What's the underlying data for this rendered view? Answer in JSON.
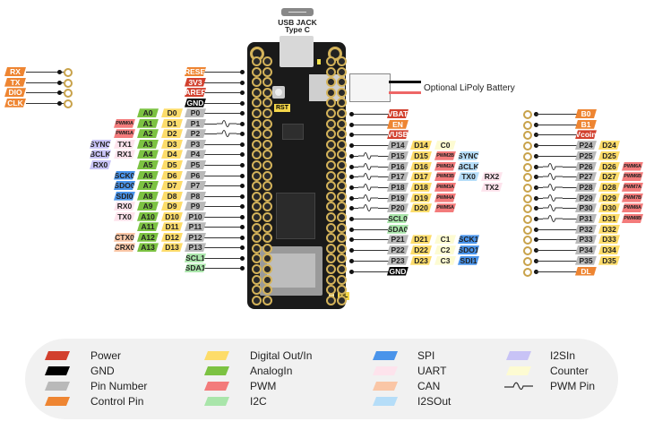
{
  "colors": {
    "power": "#d2402e",
    "gnd": "#000000",
    "pin": "#b9b9b9",
    "control": "#ee8532",
    "digital": "#fddc6a",
    "analog": "#7cc242",
    "pwm": "#f37b7b",
    "i2c": "#a9e5aa",
    "spi": "#4a94ea",
    "uart": "#fde3ec",
    "can": "#fac6a6",
    "i2sout": "#b5ddf8",
    "i2sin": "#c8c3f6",
    "counter": "#fdfbd2"
  },
  "usb": {
    "label_line1": "USB JACK",
    "label_line2": "Type C"
  },
  "battery": {
    "label": "Optional LiPoly Battery"
  },
  "board": {
    "rst_label": "RST",
    "dl_label": "DL"
  },
  "debug_pins": [
    {
      "t": "RX",
      "k": "control"
    },
    {
      "t": "TX",
      "k": "control"
    },
    {
      "t": "DIO",
      "k": "control"
    },
    {
      "t": "CLK",
      "k": "control"
    }
  ],
  "left_rows": [
    {
      "cells": [
        {
          "t": "RESET",
          "k": "control"
        }
      ]
    },
    {
      "cells": [
        {
          "t": "3V3",
          "k": "power"
        }
      ]
    },
    {
      "cells": [
        {
          "t": "AREF",
          "k": "power"
        }
      ]
    },
    {
      "cells": [
        {
          "t": "GND",
          "k": "gnd"
        }
      ]
    },
    {
      "cells": [
        {
          "t": "P0",
          "k": "pin"
        },
        {
          "t": "D0",
          "k": "digital"
        },
        {
          "t": "A0",
          "k": "analog"
        }
      ]
    },
    {
      "pwm": true,
      "cells": [
        {
          "t": "P1",
          "k": "pin"
        },
        {
          "t": "D1",
          "k": "digital"
        },
        {
          "t": "A1",
          "k": "analog"
        },
        {
          "t": "PWM0A",
          "k": "pwm"
        }
      ]
    },
    {
      "pwm": true,
      "cells": [
        {
          "t": "P2",
          "k": "pin"
        },
        {
          "t": "D2",
          "k": "digital"
        },
        {
          "t": "A2",
          "k": "analog"
        },
        {
          "t": "PWM1A",
          "k": "pwm"
        }
      ]
    },
    {
      "cells": [
        {
          "t": "P3",
          "k": "pin"
        },
        {
          "t": "D3",
          "k": "digital"
        },
        {
          "t": "A3",
          "k": "analog"
        },
        {
          "t": "TX1",
          "k": "uart"
        },
        {
          "t": "SYNC0",
          "k": "i2sin"
        }
      ]
    },
    {
      "cells": [
        {
          "t": "P4",
          "k": "pin"
        },
        {
          "t": "D4",
          "k": "digital"
        },
        {
          "t": "A4",
          "k": "analog"
        },
        {
          "t": "RX1",
          "k": "uart"
        },
        {
          "t": "BCLK0",
          "k": "i2sin"
        }
      ]
    },
    {
      "cells": [
        {
          "t": "P5",
          "k": "pin"
        },
        {
          "t": "D5",
          "k": "digital"
        },
        {
          "t": "A5",
          "k": "analog"
        },
        null,
        {
          "t": "RX0",
          "k": "i2sin"
        }
      ]
    },
    {
      "cells": [
        {
          "t": "P6",
          "k": "pin"
        },
        {
          "t": "D6",
          "k": "digital"
        },
        {
          "t": "A6",
          "k": "analog"
        },
        {
          "t": "SCK0",
          "k": "spi"
        }
      ]
    },
    {
      "cells": [
        {
          "t": "P7",
          "k": "pin"
        },
        {
          "t": "D7",
          "k": "digital"
        },
        {
          "t": "A7",
          "k": "analog"
        },
        {
          "t": "SDO0",
          "k": "spi"
        }
      ]
    },
    {
      "cells": [
        {
          "t": "P8",
          "k": "pin"
        },
        {
          "t": "D8",
          "k": "digital"
        },
        {
          "t": "A8",
          "k": "analog"
        },
        {
          "t": "SDI0",
          "k": "spi"
        }
      ]
    },
    {
      "cells": [
        {
          "t": "P9",
          "k": "pin"
        },
        {
          "t": "D9",
          "k": "digital"
        },
        {
          "t": "A9",
          "k": "analog"
        },
        {
          "t": "RX0",
          "k": "uart"
        }
      ]
    },
    {
      "cells": [
        {
          "t": "P10",
          "k": "pin"
        },
        {
          "t": "D10",
          "k": "digital"
        },
        {
          "t": "A10",
          "k": "analog"
        },
        {
          "t": "TX0",
          "k": "uart"
        }
      ]
    },
    {
      "cells": [
        {
          "t": "P11",
          "k": "pin"
        },
        {
          "t": "D11",
          "k": "digital"
        },
        {
          "t": "A11",
          "k": "analog"
        }
      ]
    },
    {
      "cells": [
        {
          "t": "P12",
          "k": "pin"
        },
        {
          "t": "D12",
          "k": "digital"
        },
        {
          "t": "A12",
          "k": "analog"
        },
        {
          "t": "CTX0",
          "k": "can"
        }
      ]
    },
    {
      "cells": [
        {
          "t": "P13",
          "k": "pin"
        },
        {
          "t": "D13",
          "k": "digital"
        },
        {
          "t": "A13",
          "k": "analog"
        },
        {
          "t": "CRX0",
          "k": "can"
        }
      ]
    },
    {
      "cells": [
        {
          "t": "SCL1",
          "k": "i2c"
        }
      ]
    },
    {
      "cells": [
        {
          "t": "SDA1",
          "k": "i2c"
        }
      ]
    }
  ],
  "right_rows": [
    {
      "cells": [
        {
          "t": "VBAT",
          "k": "power"
        }
      ]
    },
    {
      "cells": [
        {
          "t": "EN",
          "k": "control"
        }
      ]
    },
    {
      "cells": [
        {
          "t": "VUSB",
          "k": "power"
        }
      ]
    },
    {
      "cells": [
        {
          "t": "P14",
          "k": "pin"
        },
        {
          "t": "D14",
          "k": "digital"
        },
        {
          "t": "C0",
          "k": "counter"
        }
      ]
    },
    {
      "pwm": true,
      "cells": [
        {
          "t": "P15",
          "k": "pin"
        },
        {
          "t": "D15",
          "k": "digital"
        },
        {
          "t": "PWM2B",
          "k": "pwm"
        },
        {
          "t": "SYNC0",
          "k": "i2sout"
        }
      ]
    },
    {
      "pwm": true,
      "cells": [
        {
          "t": "P16",
          "k": "pin"
        },
        {
          "t": "D16",
          "k": "digital"
        },
        {
          "t": "PWM2A",
          "k": "pwm"
        },
        {
          "t": "BCLK0",
          "k": "i2sout"
        }
      ]
    },
    {
      "pwm": true,
      "cells": [
        {
          "t": "P17",
          "k": "pin"
        },
        {
          "t": "D17",
          "k": "digital"
        },
        {
          "t": "PWM3B",
          "k": "pwm"
        },
        {
          "t": "TX0",
          "k": "i2sout"
        },
        {
          "t": "RX2",
          "k": "uart"
        }
      ]
    },
    {
      "pwm": true,
      "cells": [
        {
          "t": "P18",
          "k": "pin"
        },
        {
          "t": "D18",
          "k": "digital"
        },
        {
          "t": "PWM3A",
          "k": "pwm"
        },
        null,
        {
          "t": "TX2",
          "k": "uart"
        }
      ]
    },
    {
      "pwm": true,
      "cells": [
        {
          "t": "P19",
          "k": "pin"
        },
        {
          "t": "D19",
          "k": "digital"
        },
        {
          "t": "PWM4A",
          "k": "pwm"
        }
      ]
    },
    {
      "pwm": true,
      "cells": [
        {
          "t": "P20",
          "k": "pin"
        },
        {
          "t": "D20",
          "k": "digital"
        },
        {
          "t": "PWM5A",
          "k": "pwm"
        }
      ]
    },
    {
      "cells": [
        {
          "t": "SCL0",
          "k": "i2c"
        }
      ]
    },
    {
      "cells": [
        {
          "t": "SDA0",
          "k": "i2c"
        }
      ]
    },
    {
      "cells": [
        {
          "t": "P21",
          "k": "pin"
        },
        {
          "t": "D21",
          "k": "digital"
        },
        {
          "t": "C1",
          "k": "counter"
        },
        {
          "t": "SCK1",
          "k": "spi"
        }
      ]
    },
    {
      "cells": [
        {
          "t": "P22",
          "k": "pin"
        },
        {
          "t": "D22",
          "k": "digital"
        },
        {
          "t": "C2",
          "k": "counter"
        },
        {
          "t": "SDO1",
          "k": "spi"
        }
      ]
    },
    {
      "cells": [
        {
          "t": "P23",
          "k": "pin"
        },
        {
          "t": "D23",
          "k": "digital"
        },
        {
          "t": "C3",
          "k": "counter"
        },
        {
          "t": "SDI1",
          "k": "spi"
        }
      ]
    },
    {
      "cells": [
        {
          "t": "GND",
          "k": "gnd"
        }
      ]
    }
  ],
  "far_right_rows": [
    {
      "cells": [
        {
          "t": "B0",
          "k": "control"
        }
      ]
    },
    {
      "cells": [
        {
          "t": "B1",
          "k": "control"
        }
      ]
    },
    {
      "cells": [
        {
          "t": "Vcoin",
          "k": "power"
        }
      ]
    },
    {
      "cells": [
        {
          "t": "P24",
          "k": "pin"
        },
        {
          "t": "D24",
          "k": "digital"
        }
      ]
    },
    {
      "cells": [
        {
          "t": "P25",
          "k": "pin"
        },
        {
          "t": "D25",
          "k": "digital"
        }
      ]
    },
    {
      "pwm": true,
      "cells": [
        {
          "t": "P26",
          "k": "pin"
        },
        {
          "t": "D26",
          "k": "digital"
        },
        {
          "t": "PWM6A",
          "k": "pwm"
        }
      ]
    },
    {
      "pwm": true,
      "cells": [
        {
          "t": "P27",
          "k": "pin"
        },
        {
          "t": "D27",
          "k": "digital"
        },
        {
          "t": "PWM6B",
          "k": "pwm"
        }
      ]
    },
    {
      "pwm": true,
      "cells": [
        {
          "t": "P28",
          "k": "pin"
        },
        {
          "t": "D28",
          "k": "digital"
        },
        {
          "t": "PWM7A",
          "k": "pwm"
        }
      ]
    },
    {
      "pwm": true,
      "cells": [
        {
          "t": "P29",
          "k": "pin"
        },
        {
          "t": "D29",
          "k": "digital"
        },
        {
          "t": "PWM7B",
          "k": "pwm"
        }
      ]
    },
    {
      "pwm": true,
      "cells": [
        {
          "t": "P30",
          "k": "pin"
        },
        {
          "t": "D30",
          "k": "digital"
        },
        {
          "t": "PWM8A",
          "k": "pwm"
        }
      ]
    },
    {
      "pwm": true,
      "cells": [
        {
          "t": "P31",
          "k": "pin"
        },
        {
          "t": "D31",
          "k": "digital"
        },
        {
          "t": "PWM8B",
          "k": "pwm"
        }
      ]
    },
    {
      "cells": [
        {
          "t": "P32",
          "k": "pin"
        },
        {
          "t": "D32",
          "k": "digital"
        }
      ]
    },
    {
      "cells": [
        {
          "t": "P33",
          "k": "pin"
        },
        {
          "t": "D33",
          "k": "digital"
        }
      ]
    },
    {
      "cells": [
        {
          "t": "P34",
          "k": "pin"
        },
        {
          "t": "D34",
          "k": "digital"
        }
      ]
    },
    {
      "cells": [
        {
          "t": "P35",
          "k": "pin"
        },
        {
          "t": "D35",
          "k": "digital"
        }
      ]
    },
    {
      "cells": [
        {
          "t": "DL",
          "k": "control"
        }
      ]
    }
  ],
  "legend": [
    {
      "label": "Power",
      "k": "power"
    },
    {
      "label": "GND",
      "k": "gnd"
    },
    {
      "label": "Pin Number",
      "k": "pin"
    },
    {
      "label": "Control Pin",
      "k": "control"
    },
    {
      "label": "Digital Out/In",
      "k": "digital"
    },
    {
      "label": "AnalogIn",
      "k": "analog"
    },
    {
      "label": "PWM",
      "k": "pwm"
    },
    {
      "label": "I2C",
      "k": "i2c"
    },
    {
      "label": "SPI",
      "k": "spi"
    },
    {
      "label": "UART",
      "k": "uart"
    },
    {
      "label": "CAN",
      "k": "can"
    },
    {
      "label": "I2SOut",
      "k": "i2sout"
    },
    {
      "label": "I2SIn",
      "k": "i2sin"
    },
    {
      "label": "Counter",
      "k": "counter"
    },
    {
      "label": "PWM Pin",
      "k": "pwm-wave"
    }
  ]
}
